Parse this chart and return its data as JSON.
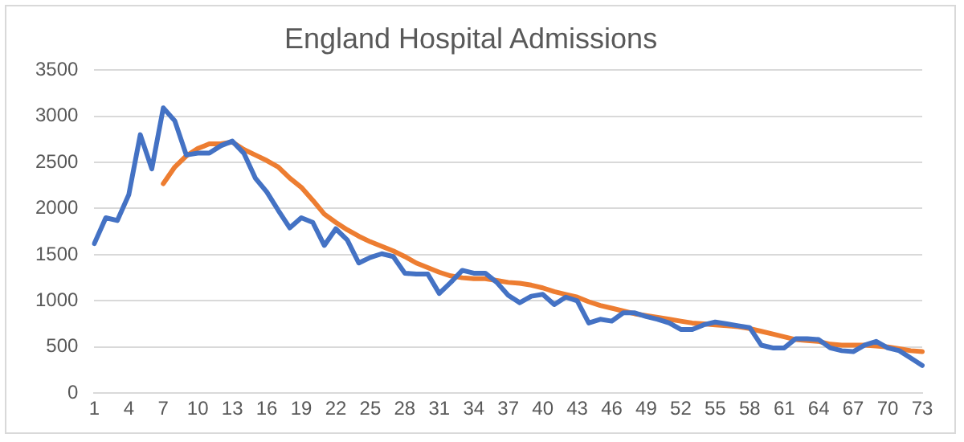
{
  "chart_data": {
    "type": "line",
    "title": "England Hospital Admissions",
    "categories": [
      "1",
      null,
      null,
      "4",
      null,
      null,
      "7",
      null,
      null,
      "10",
      null,
      null,
      "13",
      null,
      null,
      "16",
      null,
      null,
      "19",
      null,
      null,
      "22",
      null,
      null,
      "25",
      null,
      null,
      "28",
      null,
      null,
      "31",
      null,
      null,
      "34",
      null,
      null,
      "37",
      null,
      null,
      "40",
      null,
      null,
      "43",
      null,
      null,
      "46",
      null,
      null,
      "49",
      null,
      null,
      "52",
      null,
      null,
      "55",
      null,
      null,
      "58",
      null,
      null,
      "61",
      null,
      null,
      "64",
      null,
      null,
      "67",
      null,
      null,
      "70",
      null,
      null,
      "73"
    ],
    "series": [
      {
        "color": "#4472c4",
        "values": [
          1620,
          1900,
          1870,
          2150,
          2800,
          2430,
          3090,
          2950,
          2580,
          2600,
          2600,
          2680,
          2730,
          2600,
          2330,
          2180,
          1980,
          1790,
          1900,
          1850,
          1600,
          1780,
          1660,
          1410,
          1470,
          1510,
          1480,
          1300,
          1290,
          1290,
          1080,
          1200,
          1330,
          1300,
          1300,
          1200,
          1060,
          980,
          1050,
          1070,
          960,
          1040,
          1000,
          760,
          800,
          780,
          870,
          870,
          830,
          800,
          760,
          690,
          690,
          740,
          770,
          750,
          730,
          710,
          520,
          490,
          490,
          590,
          590,
          580,
          490,
          460,
          450,
          520,
          560,
          490,
          460,
          380,
          300
        ]
      },
      {
        "color": "#ed7d31",
        "values": [
          null,
          null,
          null,
          null,
          null,
          null,
          2270,
          2450,
          2570,
          2650,
          2700,
          2700,
          2720,
          2640,
          2580,
          2520,
          2450,
          2330,
          2230,
          2090,
          1940,
          1850,
          1770,
          1700,
          1640,
          1590,
          1540,
          1480,
          1410,
          1360,
          1310,
          1270,
          1250,
          1240,
          1240,
          1220,
          1200,
          1190,
          1170,
          1140,
          1100,
          1070,
          1040,
          990,
          950,
          920,
          890,
          860,
          840,
          820,
          800,
          780,
          760,
          750,
          740,
          730,
          720,
          700,
          670,
          640,
          610,
          580,
          570,
          560,
          530,
          520,
          520,
          520,
          510,
          500,
          480,
          460,
          450
        ]
      }
    ],
    "ylim": [
      0,
      3500
    ],
    "yticks": [
      0,
      500,
      1000,
      1500,
      2000,
      2500,
      3000,
      3500
    ],
    "grid": "y",
    "legend": false,
    "marker": "none",
    "line_style": "solid"
  }
}
